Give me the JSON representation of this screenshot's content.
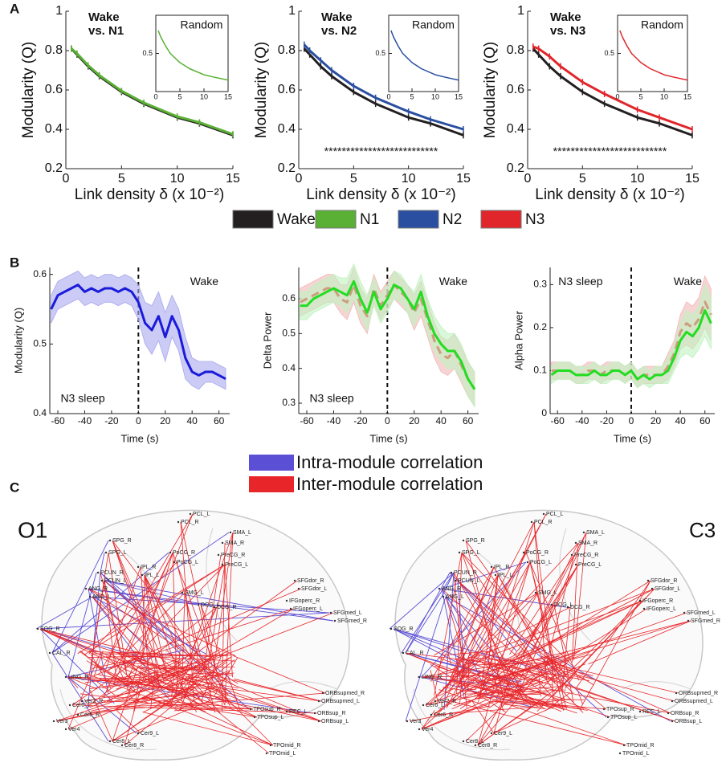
{
  "panels": [
    "A",
    "B",
    "C"
  ],
  "chart_data": [
    {
      "type": "line",
      "ylabel": "Modularity (Q)",
      "xlabel": "Link density δ (x 10⁻²)",
      "annotation": [
        "Wake",
        "vs. N1"
      ],
      "x": [
        0.5,
        1,
        2,
        3,
        5,
        7,
        10,
        12,
        15
      ],
      "series": [
        {
          "name": "Wake",
          "color": "#231f20",
          "values": [
            0.81,
            0.78,
            0.72,
            0.67,
            0.59,
            0.53,
            0.46,
            0.43,
            0.37
          ]
        },
        {
          "name": "N1",
          "color": "#5ab034",
          "values": [
            0.81,
            0.785,
            0.725,
            0.675,
            0.595,
            0.535,
            0.465,
            0.435,
            0.375
          ]
        }
      ],
      "xlim": [
        0,
        15
      ],
      "ylim": [
        0.2,
        1
      ],
      "xticks": [
        0,
        5,
        10,
        15
      ],
      "yticks": [
        0.2,
        0.4,
        0.6,
        0.8,
        1
      ],
      "inset": {
        "title": "Random",
        "x": [
          0.5,
          1,
          2,
          3,
          5,
          7,
          10,
          12,
          15
        ],
        "series": [
          {
            "color": "#5ab034",
            "values": [
              0.8,
              0.72,
              0.6,
              0.5,
              0.38,
              0.3,
              0.22,
              0.19,
              0.15
            ]
          }
        ],
        "xlim": [
          0,
          15
        ],
        "ylim": [
          0,
          1
        ],
        "xticks": [
          0,
          5,
          10,
          15
        ],
        "yticks": [
          0.5
        ]
      }
    },
    {
      "type": "line",
      "ylabel": "Modularity (Q)",
      "xlabel": "Link density δ (x 10⁻²)",
      "annotation": [
        "Wake",
        "vs. N2"
      ],
      "stars": "**************************",
      "x": [
        0.5,
        1,
        2,
        3,
        5,
        7,
        10,
        12,
        15
      ],
      "series": [
        {
          "color": "#231f20",
          "values": [
            0.81,
            0.78,
            0.72,
            0.67,
            0.59,
            0.53,
            0.46,
            0.43,
            0.37
          ]
        },
        {
          "name": "N2",
          "color": "#2a4fa0",
          "values": [
            0.83,
            0.8,
            0.75,
            0.7,
            0.62,
            0.56,
            0.49,
            0.45,
            0.4
          ]
        }
      ],
      "xlim": [
        0,
        15
      ],
      "ylim": [
        0.2,
        1
      ],
      "xticks": [
        0,
        5,
        10,
        15
      ],
      "yticks": [
        0.2,
        0.4,
        0.6,
        0.8,
        1
      ],
      "inset": {
        "title": "Random",
        "x": [
          0.5,
          1,
          2,
          3,
          5,
          7,
          10,
          12,
          15
        ],
        "series": [
          {
            "color": "#2a4fa0",
            "values": [
              0.8,
              0.72,
              0.6,
              0.5,
              0.38,
              0.3,
              0.22,
              0.19,
              0.15
            ]
          }
        ],
        "xlim": [
          0,
          15
        ],
        "ylim": [
          0,
          1
        ],
        "xticks": [
          0,
          5,
          10,
          15
        ],
        "yticks": [
          0.5
        ]
      }
    },
    {
      "type": "line",
      "ylabel": "Modularity (Q)",
      "xlabel": "Link density δ (x 10⁻²)",
      "annotation": [
        "Wake",
        "vs. N3"
      ],
      "stars": "**************************",
      "x": [
        0.5,
        1,
        2,
        3,
        5,
        7,
        10,
        12,
        15
      ],
      "series": [
        {
          "color": "#231f20",
          "values": [
            0.81,
            0.78,
            0.72,
            0.67,
            0.59,
            0.53,
            0.46,
            0.43,
            0.37
          ]
        },
        {
          "name": "N3",
          "color": "#e0262b",
          "values": [
            0.82,
            0.81,
            0.77,
            0.72,
            0.64,
            0.58,
            0.5,
            0.46,
            0.4
          ]
        }
      ],
      "xlim": [
        0,
        15
      ],
      "ylim": [
        0.2,
        1
      ],
      "xticks": [
        0,
        5,
        10,
        15
      ],
      "yticks": [
        0.2,
        0.4,
        0.6,
        0.8,
        1
      ],
      "inset": {
        "title": "Random",
        "x": [
          0.5,
          1,
          2,
          3,
          5,
          7,
          10,
          12,
          15
        ],
        "series": [
          {
            "color": "#e0262b",
            "values": [
              0.8,
              0.72,
              0.6,
              0.5,
              0.38,
              0.3,
              0.22,
              0.19,
              0.15
            ]
          }
        ],
        "xlim": [
          0,
          15
        ],
        "ylim": [
          0,
          1
        ],
        "xticks": [
          0,
          5,
          10,
          15
        ],
        "yticks": [
          0.5
        ]
      }
    },
    {
      "type": "line",
      "ylabel": "Modularity (Q)",
      "xlabel": "Time (s)",
      "annotations": [
        "Wake",
        "N3 sleep"
      ],
      "vline": 0,
      "x": [
        -65,
        -60,
        -55,
        -50,
        -45,
        -40,
        -35,
        -30,
        -25,
        -20,
        -15,
        -10,
        -5,
        0,
        5,
        10,
        15,
        20,
        25,
        30,
        35,
        40,
        45,
        50,
        55,
        60,
        65
      ],
      "series": [
        {
          "color": "#1a1adb",
          "band_color": "#a8a8ee",
          "values": [
            0.55,
            0.57,
            0.575,
            0.58,
            0.585,
            0.575,
            0.58,
            0.575,
            0.58,
            0.58,
            0.575,
            0.58,
            0.575,
            0.56,
            0.53,
            0.52,
            0.54,
            0.51,
            0.54,
            0.52,
            0.48,
            0.46,
            0.455,
            0.46,
            0.46,
            0.455,
            0.45
          ],
          "errors": [
            0.02,
            0.02,
            0.02,
            0.02,
            0.02,
            0.02,
            0.02,
            0.02,
            0.02,
            0.02,
            0.02,
            0.02,
            0.02,
            0.025,
            0.03,
            0.035,
            0.035,
            0.035,
            0.03,
            0.03,
            0.03,
            0.02,
            0.02,
            0.015,
            0.015,
            0.015,
            0.015
          ]
        }
      ],
      "xlim": [
        -66,
        68
      ],
      "ylim": [
        0.4,
        0.61
      ],
      "xticks": [
        -60,
        -40,
        -20,
        0,
        20,
        40,
        60
      ],
      "yticks": [
        0.4,
        0.5,
        0.6
      ]
    },
    {
      "type": "line",
      "ylabel": "Delta Power",
      "xlabel": "Time (s)",
      "annotations": [
        "Wake",
        "N3 sleep"
      ],
      "vline": 0,
      "x": [
        -65,
        -60,
        -55,
        -50,
        -45,
        -40,
        -35,
        -30,
        -25,
        -20,
        -15,
        -10,
        -5,
        0,
        5,
        10,
        15,
        20,
        25,
        30,
        35,
        40,
        45,
        50,
        55,
        60,
        65
      ],
      "series": [
        {
          "color": "#e02020",
          "band_color": "#f2b8b8",
          "dash": true,
          "values": [
            0.59,
            0.6,
            0.61,
            0.62,
            0.63,
            0.63,
            0.6,
            0.59,
            0.64,
            0.58,
            0.55,
            0.63,
            0.58,
            0.61,
            0.64,
            0.62,
            0.6,
            0.56,
            0.6,
            0.54,
            0.48,
            0.44,
            0.43,
            0.45,
            0.41,
            0.37,
            0.34
          ],
          "errors": [
            0.04,
            0.04,
            0.04,
            0.04,
            0.04,
            0.04,
            0.04,
            0.05,
            0.05,
            0.05,
            0.05,
            0.04,
            0.04,
            0.04,
            0.04,
            0.04,
            0.04,
            0.05,
            0.05,
            0.05,
            0.05,
            0.05,
            0.05,
            0.05,
            0.05,
            0.05,
            0.05
          ]
        },
        {
          "color": "#22dd22",
          "band_color": "#bff2bf",
          "values": [
            0.58,
            0.58,
            0.6,
            0.61,
            0.62,
            0.63,
            0.62,
            0.61,
            0.65,
            0.6,
            0.56,
            0.62,
            0.57,
            0.6,
            0.64,
            0.63,
            0.6,
            0.57,
            0.62,
            0.55,
            0.5,
            0.47,
            0.45,
            0.45,
            0.42,
            0.37,
            0.34
          ],
          "errors": [
            0.04,
            0.04,
            0.04,
            0.04,
            0.04,
            0.04,
            0.04,
            0.05,
            0.05,
            0.05,
            0.05,
            0.04,
            0.04,
            0.04,
            0.04,
            0.04,
            0.04,
            0.05,
            0.05,
            0.05,
            0.05,
            0.05,
            0.05,
            0.05,
            0.05,
            0.05,
            0.05
          ]
        }
      ],
      "xlim": [
        -66,
        68
      ],
      "ylim": [
        0.27,
        0.69
      ],
      "xticks": [
        -60,
        -40,
        -20,
        0,
        20,
        40,
        60
      ],
      "yticks": [
        0.3,
        0.4,
        0.5,
        0.6
      ]
    },
    {
      "type": "line",
      "ylabel": "Alpha Power",
      "xlabel": "Time (s)",
      "annotations": [
        "N3 sleep",
        "Wake"
      ],
      "vline": 0,
      "x": [
        -65,
        -60,
        -55,
        -50,
        -45,
        -40,
        -35,
        -30,
        -25,
        -20,
        -15,
        -10,
        -5,
        0,
        5,
        10,
        15,
        20,
        25,
        30,
        35,
        40,
        45,
        50,
        55,
        60,
        65
      ],
      "series": [
        {
          "color": "#e02020",
          "band_color": "#f2b8b8",
          "dash": true,
          "values": [
            0.1,
            0.1,
            0.1,
            0.1,
            0.09,
            0.09,
            0.1,
            0.1,
            0.09,
            0.1,
            0.1,
            0.1,
            0.09,
            0.1,
            0.08,
            0.09,
            0.09,
            0.09,
            0.09,
            0.11,
            0.14,
            0.19,
            0.21,
            0.2,
            0.22,
            0.26,
            0.23
          ],
          "errors": [
            0.02,
            0.02,
            0.02,
            0.02,
            0.02,
            0.02,
            0.02,
            0.02,
            0.02,
            0.02,
            0.02,
            0.02,
            0.02,
            0.02,
            0.02,
            0.02,
            0.02,
            0.02,
            0.02,
            0.03,
            0.03,
            0.04,
            0.05,
            0.05,
            0.05,
            0.06,
            0.06
          ]
        },
        {
          "color": "#22dd22",
          "band_color": "#bff2bf",
          "values": [
            0.09,
            0.1,
            0.1,
            0.1,
            0.09,
            0.09,
            0.09,
            0.1,
            0.09,
            0.09,
            0.1,
            0.1,
            0.09,
            0.1,
            0.08,
            0.09,
            0.08,
            0.09,
            0.09,
            0.1,
            0.13,
            0.17,
            0.19,
            0.18,
            0.2,
            0.24,
            0.21
          ],
          "errors": [
            0.02,
            0.02,
            0.02,
            0.02,
            0.02,
            0.02,
            0.02,
            0.02,
            0.02,
            0.02,
            0.02,
            0.02,
            0.02,
            0.02,
            0.02,
            0.02,
            0.02,
            0.02,
            0.02,
            0.03,
            0.03,
            0.04,
            0.05,
            0.05,
            0.05,
            0.06,
            0.06
          ]
        }
      ],
      "xlim": [
        -66,
        68
      ],
      "ylim": [
        0,
        0.34
      ],
      "xticks": [
        -60,
        -40,
        -20,
        0,
        20,
        40,
        60
      ],
      "yticks": [
        0,
        0.1,
        0.2,
        0.3
      ]
    }
  ],
  "network": {
    "legend": [
      {
        "name": "Intra-module correlation",
        "color": "#5b4fd6"
      },
      {
        "name": "Inter-module correlation",
        "color": "#e8262a"
      }
    ],
    "brains": [
      "O1",
      "C3"
    ],
    "nodes": [
      "PCL_L",
      "PCL_R",
      "SMA_L",
      "SMA_R",
      "SPG_R",
      "SPG_L",
      "PoCG_R",
      "PoCG_L",
      "PreCG_R",
      "PreCG_L",
      "IPL_R",
      "IPL_L",
      "PCUN_R",
      "PCUN_L",
      "ANG_R",
      "ANG_L",
      "SMG_L",
      "DCG_L",
      "DCG_R",
      "SFGdor_R",
      "SFGdor_L",
      "IFGoperc_R",
      "IFGoperc_L",
      "SFGmed_L",
      "SFGmed_R",
      "SOG_R",
      "CAL_R",
      "LING_R",
      "Ver2_R",
      "Ver3",
      "Ver4",
      "Cer6_L",
      "Cer6_R",
      "Cer8_L",
      "Cer8_R",
      "Cer9_L",
      "ORBsupmed_R",
      "ORBsupmed_L",
      "ORBsup_R",
      "ORBsup_L",
      "TPOsup_R",
      "TPOsup_L",
      "TPOmid_R",
      "TPOmid_L",
      "REC_L"
    ]
  }
}
